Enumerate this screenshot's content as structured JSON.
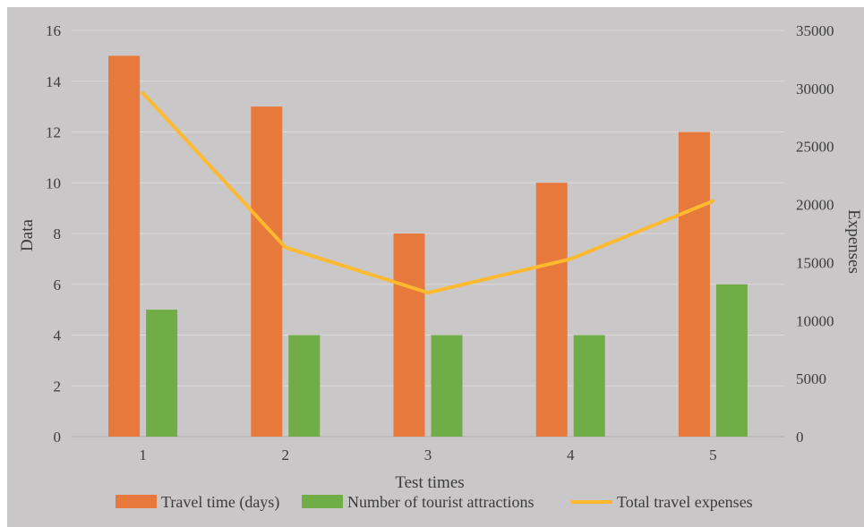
{
  "chart_data": {
    "type": "bar",
    "categories": [
      "1",
      "2",
      "3",
      "4",
      "5"
    ],
    "xlabel": "Test times",
    "ylabel": "Data",
    "y2label": "Expenses",
    "ylim": [
      0,
      16
    ],
    "yticks": [
      0,
      2,
      4,
      6,
      8,
      10,
      12,
      14,
      16
    ],
    "y2lim": [
      0,
      35000
    ],
    "y2ticks": [
      0,
      5000,
      10000,
      15000,
      20000,
      25000,
      30000,
      35000
    ],
    "grid": true,
    "legend_position": "bottom",
    "series": [
      {
        "name": "Travel time (days)",
        "type": "bar",
        "axis": "left",
        "color": "#e8793c",
        "values": [
          15,
          13,
          8,
          10,
          12
        ]
      },
      {
        "name": "Number of tourist attractions",
        "type": "bar",
        "axis": "left",
        "color": "#70ad47",
        "values": [
          5,
          4,
          4,
          4,
          6
        ]
      },
      {
        "name": "Total travel expenses",
        "type": "line",
        "axis": "right",
        "color": "#fdb92f",
        "values": [
          29600,
          16300,
          12400,
          15300,
          20300
        ]
      }
    ]
  }
}
